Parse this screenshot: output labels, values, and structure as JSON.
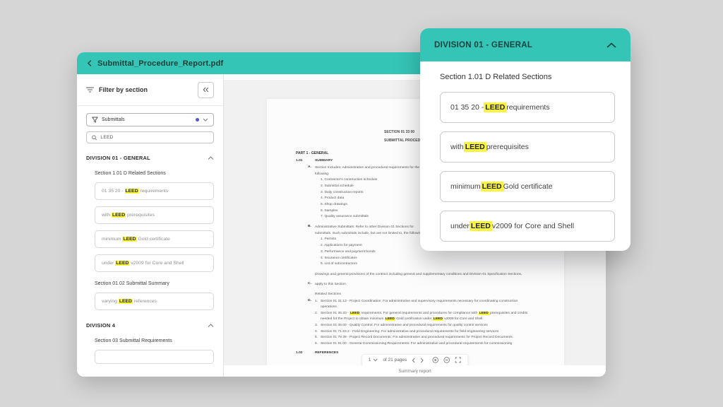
{
  "colors": {
    "teal": "#35C5B6",
    "highlight": "#F9F43E",
    "accent_dot": "#5A52CC",
    "background": "#D6D6D7"
  },
  "window": {
    "title": "Submittal_Procedure_Report.pdf"
  },
  "sidebar": {
    "panel_title": "Filter by section",
    "dropdown_label": "Submittals",
    "search_value": "LEED",
    "division1_title": "DIVISION 01 - GENERAL",
    "section1_title": "Section 1.01 D Related Sections",
    "related_items": [
      [
        [
          "01 35 20 - "
        ],
        [
          "LEED",
          true
        ],
        [
          " requirements"
        ]
      ],
      [
        [
          "with "
        ],
        [
          "LEED",
          true
        ],
        [
          " prerequisites"
        ]
      ],
      [
        [
          "minimum "
        ],
        [
          "LEED",
          true
        ],
        [
          " Gold certificate"
        ]
      ],
      [
        [
          "under "
        ],
        [
          "LEED",
          true
        ],
        [
          " v2009 for Core and Shell"
        ]
      ]
    ],
    "section2_title": "Section 01.02  Submittal Summary",
    "summary_item": [
      [
        "varying "
      ],
      [
        "LEED",
        true
      ],
      [
        " references"
      ]
    ],
    "division2_title": "DIVISION 4",
    "section3_title": "Section 03 Submittal Requirements"
  },
  "overlay": {
    "title": "DIVISION 01 - GENERAL",
    "section_title": "Section 1.01 D Related Sections",
    "items": [
      [
        [
          "01 35 20 - "
        ],
        [
          "LEED",
          true
        ],
        [
          " requirements"
        ]
      ],
      [
        [
          "with "
        ],
        [
          "LEED",
          true
        ],
        [
          " prerequisites"
        ]
      ],
      [
        [
          "minimum "
        ],
        [
          "LEED",
          true
        ],
        [
          " Gold certificate"
        ]
      ],
      [
        [
          "under "
        ],
        [
          "LEED",
          true
        ],
        [
          " v2009 for Core and Shell"
        ]
      ]
    ]
  },
  "doc": {
    "header_line1": "SECTION 01 33 00",
    "header_line2": "SUBMITTAL PROCEDURES",
    "part_heading": "PART 1 - GENERAL",
    "s101_num": "1.01",
    "s101_title": "SUMMARY",
    "a_label": "A.",
    "a_line1": "Section Includes: Administrative and procedural requirements for the",
    "a_line2": "following:",
    "a_list": [
      "1. Contractor's construction schedule",
      "2. Submittal schedule",
      "3. Daily construction reports",
      "4. Product data",
      "5. Shop drawings",
      "6. Samples",
      "7. Quality assurance submittals"
    ],
    "b_label": "B.",
    "b_line1": "Administrative Submittals: Refer to other Division 01 Sections for",
    "b_line2": "submittals. Such submittals include, but are not limited to, the following:",
    "b_list": [
      "1. Permits",
      "2. Applications for payment",
      "3. Performance and payment bonds",
      "4. Insurance certificates",
      "5. List of subcontractors"
    ],
    "c_line1": "Drawings and general provisions of the contract including general and supplementary conditions and Division 01 Specification Sections,",
    "c_label": "C.",
    "c_line2": "apply to this Section.",
    "related_heading": "Related Sections",
    "d_label": "D.",
    "d_list": [
      {
        "num": "1.",
        "lines": [
          [
            [
              "Section 01 31 13 - Project Coordination: For administrative and supervisory requirements necessary for coordinating construction"
            ]
          ],
          [
            [
              "operations."
            ]
          ]
        ]
      },
      {
        "num": "2.",
        "lines": [
          [
            [
              "Section 01 35 20 - "
            ],
            [
              "LEED",
              true
            ],
            [
              " requirements: For general requirements and procedures for compliance with "
            ],
            [
              "LEED",
              true
            ],
            [
              " prerequisites and credits"
            ]
          ],
          [
            [
              "needed for the Project to obtain minimum "
            ],
            [
              "LEED",
              true
            ],
            [
              " Gold certification under "
            ],
            [
              "LEED",
              true
            ],
            [
              " v2009 for Core and Shell."
            ]
          ]
        ]
      },
      {
        "num": "3.",
        "lines": [
          [
            [
              "Section 01 45 00 - Quality Control: For administrative and procedural requirements for quality control services"
            ]
          ]
        ]
      },
      {
        "num": "4.",
        "lines": [
          [
            [
              "Section 01 71 23.2 - Field Engineering: For administrative and procedural requirements for field engineering services"
            ]
          ]
        ]
      },
      {
        "num": "5.",
        "lines": [
          [
            [
              "Section 01 78 39 - Project Record Documents: For administrative and procedural requirements for Project Record Documents"
            ]
          ]
        ]
      },
      {
        "num": "6.",
        "lines": [
          [
            [
              "Section 01 91 00 - General Commissioning Requirements: For administrative and procedural requirements for commissioning"
            ]
          ]
        ]
      }
    ],
    "s102_num": "1.02",
    "s102_title": "REFERENCES"
  },
  "pagination": {
    "page": "1",
    "count_label": "of 21 pages"
  },
  "footer_label": "Summary report"
}
